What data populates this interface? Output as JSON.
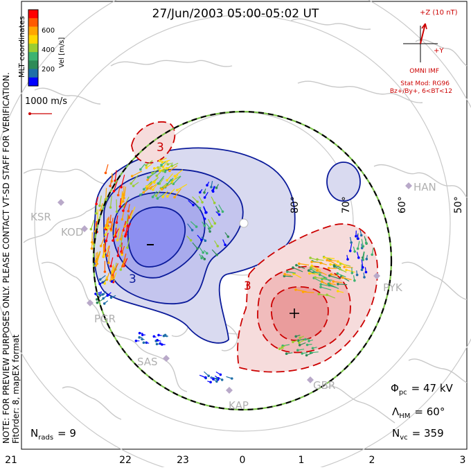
{
  "header": {
    "title": "27/Jun/2003 05:00-05:02 UT"
  },
  "side_notes": {
    "line1": "NOTE: FOR PREVIEW PURPOSES ONLY. PLEASE CONTACT VT-SD STAFF FOR VERIFICATION.",
    "line2": "FitOrder: 8, mapEX format",
    "coordinates": "MLT coordinates"
  },
  "colorbar": {
    "label": "Vel [m/s]",
    "ticks": [
      "600",
      "400",
      "200"
    ],
    "colors": [
      "#ff0000",
      "#ff5a00",
      "#ffa500",
      "#ffd700",
      "#9acd32",
      "#3cb371",
      "#2e8b57",
      "#1e6fa8",
      "#0000ff"
    ]
  },
  "scale_vector": {
    "label": "1000 m/s",
    "color": "#cc0000"
  },
  "imf": {
    "z_label": "+Z (10 nT)",
    "y_label": "+Y",
    "source": "OMNI IMF",
    "model": "Stat Mod: RG96",
    "condition": "Bz+/By+, 6<BT<12",
    "color": "#cc0000"
  },
  "stations": [
    "KSR",
    "KOD",
    "PGR",
    "SAS",
    "KAP",
    "GBR",
    "PYK",
    "HAN"
  ],
  "latitude_labels": [
    "80°",
    "70°",
    "60°",
    "50°"
  ],
  "contour_labels": [
    "3",
    "3",
    "3"
  ],
  "stats": {
    "phi_pc_symbol": "Φ",
    "phi_pc_sub": "pc",
    "phi_pc_value": "= 47 kV",
    "lambda_symbol": "Λ",
    "lambda_sub": "HM",
    "lambda_value": "= 60°",
    "nvc_symbol": "N",
    "nvc_sub": "vc",
    "nvc_value": "= 359",
    "nrads_symbol": "N",
    "nrads_sub": "rads",
    "nrads_value": "= 9"
  },
  "mlt_axis": [
    "21",
    "22",
    "23",
    "0",
    "1",
    "2",
    "3"
  ],
  "colors": {
    "negative_cell_fill": "#d6d8f0",
    "negative_cell_core": "#8c8ff0",
    "negative_contour": "#0a1a9a",
    "positive_cell_fill": "#f6dcdc",
    "positive_cell_core": "#ef9a9a",
    "positive_contour": "#cc0000",
    "boundary_dash": "#7cc44a",
    "map_line": "#c9c9c9"
  }
}
